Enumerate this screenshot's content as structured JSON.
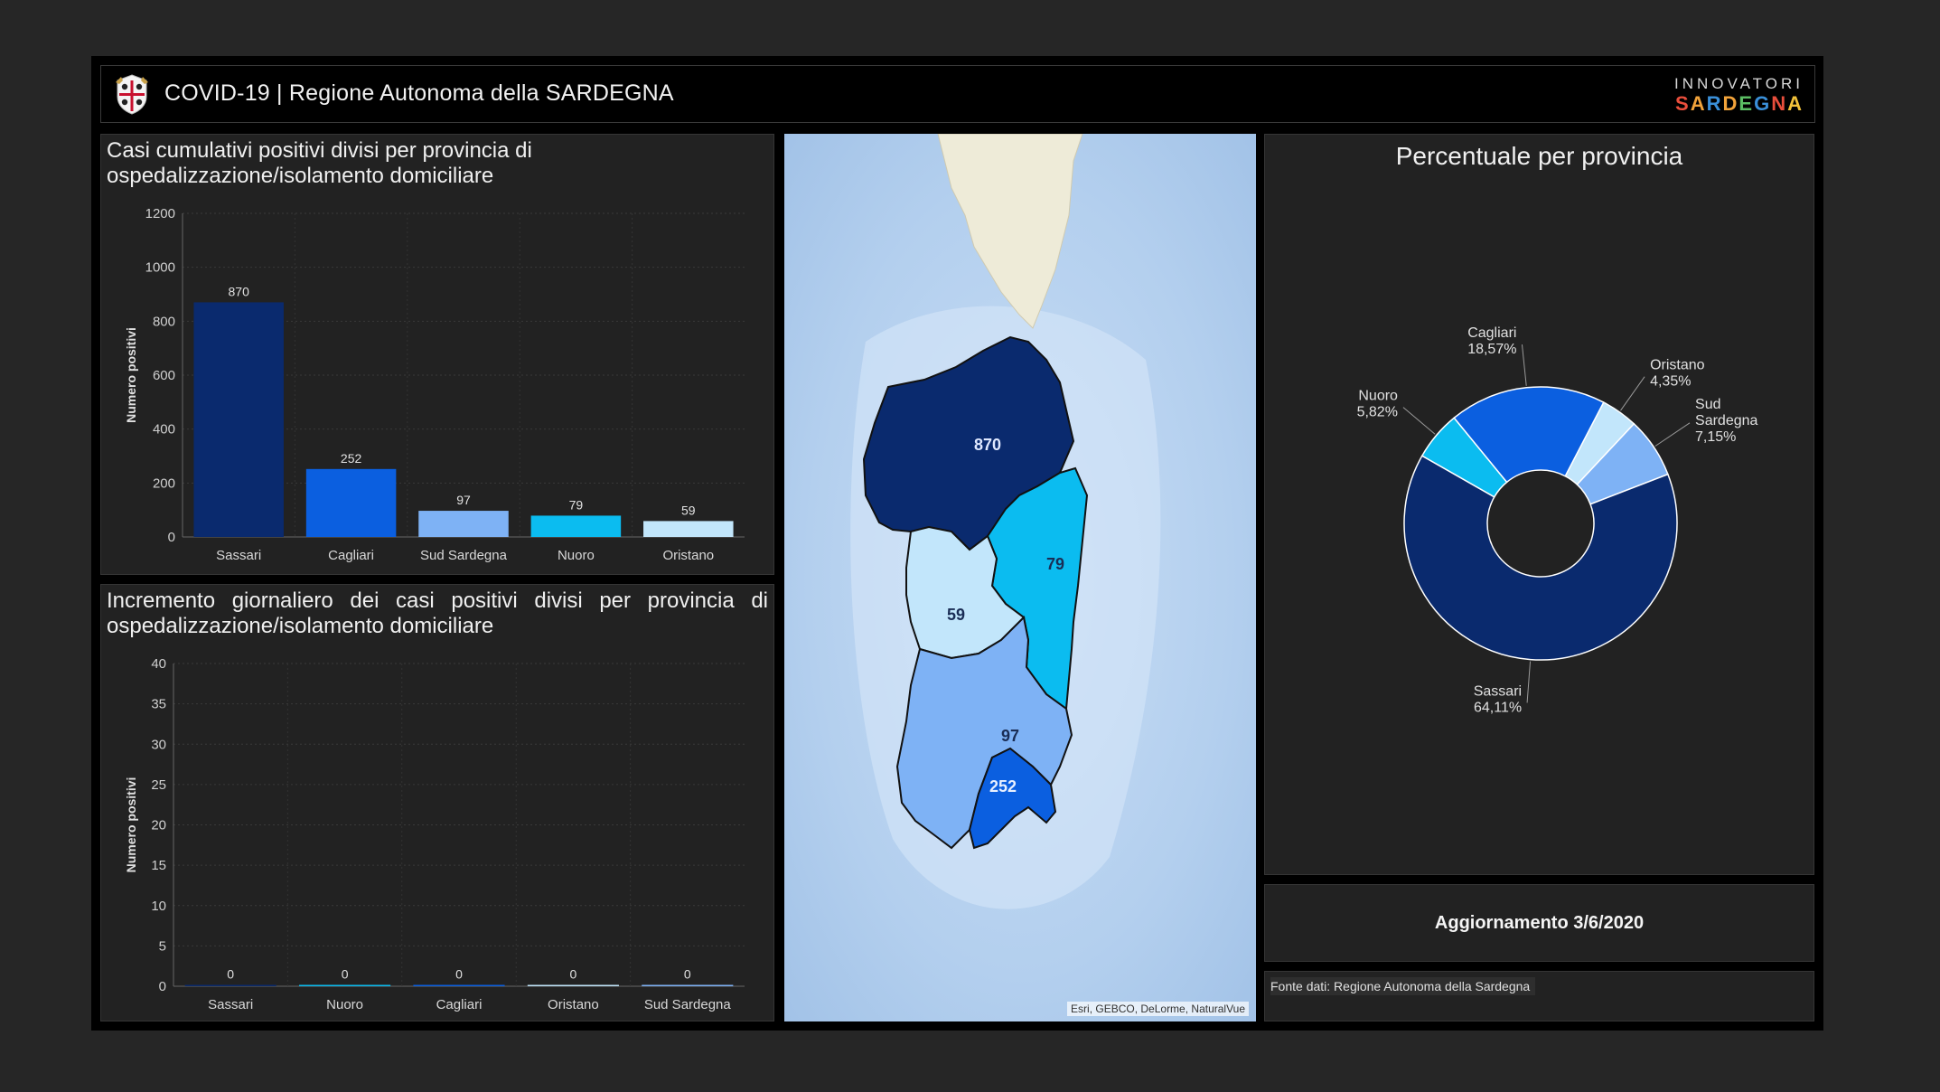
{
  "header": {
    "title": "COVID-19 | Regione Autonoma della SARDEGNA",
    "brand_top": "INNOVATORI",
    "brand_bottom": [
      "S",
      "A",
      "R",
      "D",
      "E",
      "G",
      "N",
      "A"
    ]
  },
  "cumulative_panel": {
    "title": "Casi cumulativi positivi divisi per provincia di ospedalizzazione/isolamento domiciliare"
  },
  "daily_panel": {
    "title": "Incremento giornaliero dei casi positivi divisi per provincia di ospedalizzazione/isolamento domiciliare"
  },
  "map": {
    "attribution": "Esri, GEBCO, DeLorme, NaturalVue",
    "labels": [
      {
        "province": "Sassari",
        "value": "870"
      },
      {
        "province": "Nuoro",
        "value": "79"
      },
      {
        "province": "Oristano",
        "value": "59"
      },
      {
        "province": "Sud Sardegna",
        "value": "97"
      },
      {
        "province": "Cagliari",
        "value": "252"
      }
    ]
  },
  "pie_panel": {
    "title": "Percentuale per provincia"
  },
  "update": {
    "text": "Aggiornamento 3/6/2020"
  },
  "source": {
    "text": "Fonte dati: Regione Autonoma della Sardegna"
  },
  "chart_data": [
    {
      "type": "bar",
      "title": "Casi cumulativi positivi divisi per provincia di ospedalizzazione/isolamento domiciliare",
      "ylabel": "Numero positivi",
      "xlabel": "",
      "categories": [
        "Sassari",
        "Cagliari",
        "Sud Sardegna",
        "Nuoro",
        "Oristano"
      ],
      "values": [
        870,
        252,
        97,
        79,
        59
      ],
      "colors": [
        "#0a2a6e",
        "#0b5fe0",
        "#7eb2f5",
        "#0bbcf0",
        "#c2e6fb"
      ],
      "ylim": [
        0,
        1200
      ],
      "yticks": [
        0,
        200,
        400,
        600,
        800,
        1000,
        1200
      ],
      "grid": true
    },
    {
      "type": "bar",
      "title": "Incremento giornaliero dei casi positivi divisi per provincia di ospedalizzazione/isolamento domiciliare",
      "ylabel": "Numero positivi",
      "xlabel": "",
      "categories": [
        "Sassari",
        "Nuoro",
        "Cagliari",
        "Oristano",
        "Sud Sardegna"
      ],
      "values": [
        0,
        0,
        0,
        0,
        0
      ],
      "colors": [
        "#0a2a6e",
        "#0bbcf0",
        "#0b5fe0",
        "#c2e6fb",
        "#7eb2f5"
      ],
      "ylim": [
        0,
        40
      ],
      "yticks": [
        0,
        5,
        10,
        15,
        20,
        25,
        30,
        35,
        40
      ],
      "grid": true
    },
    {
      "type": "pie",
      "title": "Percentuale per provincia",
      "categories": [
        "Oristano",
        "Sud Sardegna",
        "Sassari",
        "Nuoro",
        "Cagliari"
      ],
      "values": [
        4.35,
        7.15,
        64.11,
        5.82,
        18.57
      ],
      "labels": [
        "Oristano|4,35%",
        "Sud|Sardegna|7,15%",
        "Sassari|64,11%",
        "Nuoro|5,82%",
        "Cagliari|18,57%"
      ],
      "colors": [
        "#c2e6fb",
        "#7eb2f5",
        "#0a2a6e",
        "#0bbcf0",
        "#0b5fe0"
      ],
      "donut": true
    }
  ]
}
